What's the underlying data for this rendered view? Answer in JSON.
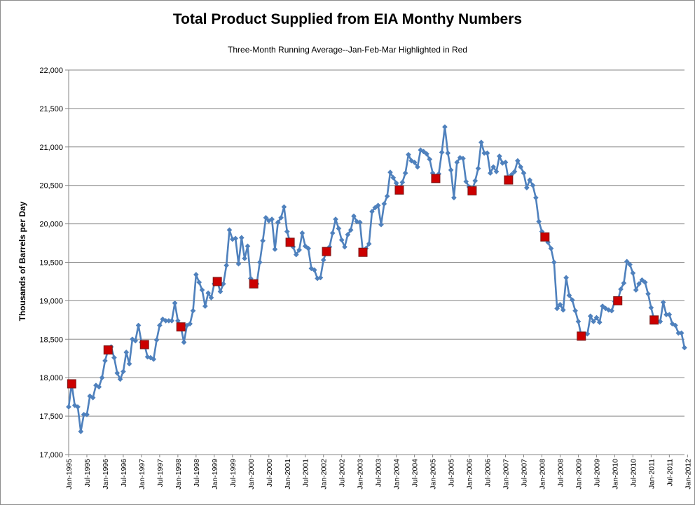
{
  "chart_data": {
    "type": "line",
    "title": "Total Product Supplied from EIA Monthy Numbers",
    "subtitle": "Three-Month Running Average--Jan-Feb-Mar Highlighted in Red",
    "xlabel": "",
    "ylabel": "Thousands of Barrels per Day",
    "ylim": [
      17000,
      22000
    ],
    "yticks": [
      17000,
      17500,
      18000,
      18500,
      19000,
      19500,
      20000,
      20500,
      21000,
      21500,
      22000
    ],
    "ytick_labels": [
      "17,000",
      "17,500",
      "18,000",
      "18,500",
      "19,000",
      "19,500",
      "20,000",
      "20,500",
      "21,000",
      "21,500",
      "22,000"
    ],
    "start": "Jan-1995",
    "xtick_labels": [
      "Jan-1995",
      "Jul-1995",
      "Jan-1996",
      "Jul-1996",
      "Jan-1997",
      "Jul-1997",
      "Jan-1998",
      "Jul-1998",
      "Jan-1999",
      "Jul-1999",
      "Jan-2000",
      "Jul-2000",
      "Jan-2001",
      "Jul-2001",
      "Jan-2002",
      "Jul-2002",
      "Jan-2003",
      "Jul-2003",
      "Jan-2004",
      "Jul-2004",
      "Jan-2005",
      "Jul-2005",
      "Jan-2006",
      "Jul-2006",
      "Jan-2007",
      "Jul-2007",
      "Jan-2008",
      "Jul-2008",
      "Jan-2009",
      "Jul-2009",
      "Jan-2010",
      "Jul-2010",
      "Jan-2011",
      "Jul-2011",
      "Jan-2012"
    ],
    "grid": true,
    "series": [
      {
        "name": "Three-Month Running Average",
        "color": "#4f81bd",
        "marker": "diamond",
        "values": [
          17620,
          17920,
          17640,
          17620,
          17300,
          17520,
          17520,
          17760,
          17740,
          17900,
          17880,
          18000,
          18220,
          18360,
          18400,
          18260,
          18060,
          17980,
          18080,
          18330,
          18180,
          18500,
          18480,
          18680,
          18460,
          18430,
          18270,
          18260,
          18240,
          18490,
          18680,
          18760,
          18740,
          18740,
          18740,
          18970,
          18740,
          18660,
          18460,
          18680,
          18700,
          18870,
          19340,
          19240,
          19140,
          18930,
          19100,
          19040,
          19220,
          19250,
          19120,
          19220,
          19460,
          19920,
          19800,
          19810,
          19480,
          19820,
          19550,
          19710,
          19290,
          19220,
          19220,
          19500,
          19780,
          20080,
          20040,
          20060,
          19670,
          20020,
          20080,
          20220,
          19900,
          19760,
          19700,
          19600,
          19660,
          19880,
          19710,
          19680,
          19420,
          19400,
          19290,
          19300,
          19530,
          19640,
          19700,
          19880,
          20060,
          19940,
          19790,
          19700,
          19860,
          19920,
          20100,
          20030,
          20020,
          19630,
          19680,
          19740,
          20160,
          20210,
          20240,
          19990,
          20260,
          20360,
          20670,
          20600,
          20530,
          20440,
          20540,
          20660,
          20900,
          20820,
          20800,
          20740,
          20960,
          20940,
          20910,
          20840,
          20660,
          20590,
          20650,
          20930,
          21260,
          20920,
          20700,
          20340,
          20800,
          20860,
          20850,
          20550,
          20480,
          20430,
          20560,
          20720,
          21060,
          20920,
          20920,
          20660,
          20740,
          20680,
          20880,
          20790,
          20800,
          20570,
          20640,
          20680,
          20820,
          20740,
          20660,
          20470,
          20570,
          20500,
          20340,
          20030,
          19900,
          19830,
          19760,
          19680,
          19500,
          18900,
          18950,
          18880,
          19300,
          19070,
          19010,
          18870,
          18730,
          18540,
          18560,
          18570,
          18800,
          18730,
          18780,
          18720,
          18930,
          18900,
          18880,
          18870,
          18990,
          19000,
          19150,
          19230,
          19510,
          19470,
          19360,
          19140,
          19220,
          19270,
          19240,
          19090,
          18910,
          18750,
          18740,
          18730,
          18980,
          18820,
          18820,
          18700,
          18680,
          18580,
          18580,
          18390
        ]
      }
    ]
  }
}
